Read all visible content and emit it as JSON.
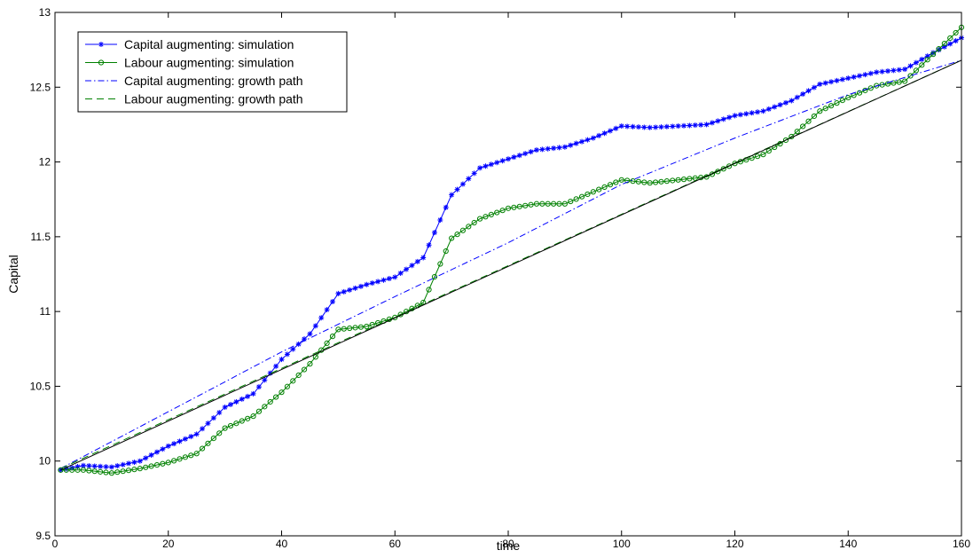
{
  "chart_data": {
    "type": "line",
    "title": "",
    "xlabel": "time",
    "ylabel": "Capital",
    "xlim": [
      0,
      160
    ],
    "ylim": [
      9.5,
      13
    ],
    "xticks": [
      0,
      20,
      40,
      60,
      80,
      100,
      120,
      140,
      160
    ],
    "yticks": [
      9.5,
      10,
      10.5,
      11,
      11.5,
      12,
      12.5,
      13
    ],
    "xtick_labels": [
      "0",
      "20",
      "40",
      "60",
      "80",
      "100",
      "120",
      "140",
      "160"
    ],
    "ytick_labels": [
      "9.5",
      "10",
      "10.5",
      "11",
      "11.5",
      "12",
      "12.5",
      "13"
    ],
    "grid": false,
    "legend_position": "top-left",
    "legend": [
      "Capital augmenting: simulation",
      "Labour augmenting: simulation",
      "Capital augmenting: growth path",
      "Labour augmenting: growth path"
    ],
    "series": [
      {
        "name": "Capital augmenting: simulation",
        "color": "#0000ff",
        "marker": "star",
        "style": "solid",
        "points": [
          [
            1,
            9.94
          ],
          [
            5,
            9.97
          ],
          [
            10,
            9.96
          ],
          [
            15,
            10.0
          ],
          [
            20,
            10.1
          ],
          [
            25,
            10.18
          ],
          [
            30,
            10.36
          ],
          [
            35,
            10.45
          ],
          [
            40,
            10.68
          ],
          [
            45,
            10.85
          ],
          [
            50,
            11.12
          ],
          [
            55,
            11.18
          ],
          [
            60,
            11.23
          ],
          [
            65,
            11.36
          ],
          [
            70,
            11.78
          ],
          [
            75,
            11.96
          ],
          [
            80,
            12.02
          ],
          [
            85,
            12.08
          ],
          [
            90,
            12.1
          ],
          [
            95,
            12.16
          ],
          [
            100,
            12.24
          ],
          [
            105,
            12.23
          ],
          [
            110,
            12.24
          ],
          [
            115,
            12.25
          ],
          [
            120,
            12.31
          ],
          [
            125,
            12.34
          ],
          [
            130,
            12.41
          ],
          [
            135,
            12.52
          ],
          [
            140,
            12.56
          ],
          [
            145,
            12.6
          ],
          [
            150,
            12.62
          ],
          [
            155,
            12.73
          ],
          [
            160,
            12.83
          ]
        ]
      },
      {
        "name": "Labour augmenting: simulation",
        "color": "#008000",
        "marker": "circle",
        "style": "solid",
        "points": [
          [
            1,
            9.94
          ],
          [
            5,
            9.94
          ],
          [
            10,
            9.92
          ],
          [
            15,
            9.95
          ],
          [
            20,
            9.99
          ],
          [
            25,
            10.05
          ],
          [
            30,
            10.22
          ],
          [
            35,
            10.3
          ],
          [
            40,
            10.46
          ],
          [
            45,
            10.65
          ],
          [
            50,
            10.88
          ],
          [
            55,
            10.9
          ],
          [
            60,
            10.96
          ],
          [
            65,
            11.06
          ],
          [
            70,
            11.49
          ],
          [
            75,
            11.62
          ],
          [
            80,
            11.69
          ],
          [
            85,
            11.72
          ],
          [
            90,
            11.72
          ],
          [
            95,
            11.8
          ],
          [
            100,
            11.88
          ],
          [
            105,
            11.86
          ],
          [
            110,
            11.88
          ],
          [
            115,
            11.9
          ],
          [
            120,
            11.99
          ],
          [
            125,
            12.05
          ],
          [
            130,
            12.17
          ],
          [
            135,
            12.34
          ],
          [
            140,
            12.43
          ],
          [
            145,
            12.51
          ],
          [
            150,
            12.54
          ],
          [
            155,
            12.72
          ],
          [
            160,
            12.9
          ]
        ]
      },
      {
        "name": "Capital augmenting: growth path",
        "color": "#0000ff",
        "marker": "none",
        "style": "dashdot",
        "points": [
          [
            1,
            9.95
          ],
          [
            20,
            10.33
          ],
          [
            40,
            10.73
          ],
          [
            60,
            11.1
          ],
          [
            80,
            11.46
          ],
          [
            100,
            11.85
          ],
          [
            120,
            12.16
          ],
          [
            140,
            12.45
          ],
          [
            160,
            12.68
          ]
        ]
      },
      {
        "name": "Labour augmenting: growth path",
        "color": "#008000",
        "marker": "none",
        "style": "dashed",
        "points": [
          [
            1,
            9.95
          ],
          [
            160,
            12.68
          ]
        ]
      },
      {
        "name": "",
        "color": "#000000",
        "marker": "none",
        "style": "solid",
        "points": [
          [
            1,
            9.94
          ],
          [
            160,
            12.68
          ]
        ]
      }
    ]
  }
}
